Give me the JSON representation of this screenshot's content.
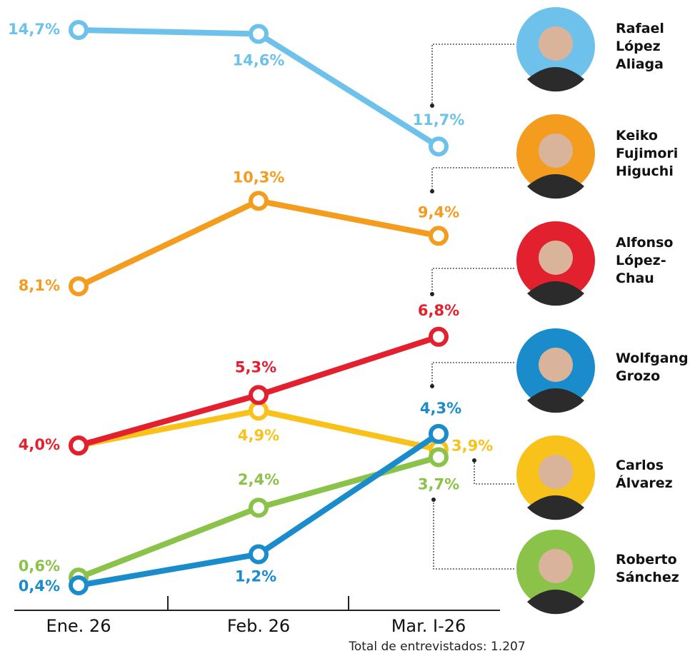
{
  "chart_data": {
    "type": "line",
    "categories": [
      "Ene. 26",
      "Feb. 26",
      "Mar. I-26"
    ],
    "series": [
      {
        "name": "Rafael López Aliaga",
        "color": "#6ec1ea",
        "values": [
          14.7,
          14.6,
          11.7
        ],
        "value_labels": [
          "14,7%",
          "14,6%",
          "11,7%"
        ]
      },
      {
        "name": "Keiko Fujimori Higuchi",
        "color": "#f39c1e",
        "values": [
          8.1,
          10.3,
          9.4
        ],
        "value_labels": [
          "8,1%",
          "10,3%",
          "9,4%"
        ]
      },
      {
        "name": "Alfonso López-Chau",
        "color": "#e3202e",
        "values": [
          4.0,
          5.3,
          6.8
        ],
        "value_labels": [
          "4,0%",
          "5,3%",
          "6,8%"
        ]
      },
      {
        "name": "Wolfgang Grozo",
        "color": "#1a8ccc",
        "values": [
          0.4,
          1.2,
          4.3
        ],
        "value_labels": [
          "0,4%",
          "1,2%",
          "4,3%"
        ]
      },
      {
        "name": "Carlos Álvarez",
        "color": "#f9c21a",
        "values": [
          4.0,
          4.9,
          3.9
        ],
        "value_labels": [
          null,
          "4,9%",
          "3,9%"
        ]
      },
      {
        "name": "Roberto Sánchez",
        "color": "#8bc34a",
        "values": [
          0.6,
          2.4,
          3.7
        ],
        "value_labels": [
          "0,6%",
          "2,4%",
          "3,7%"
        ]
      }
    ],
    "footnote": "Total de entrevistados: 1.207"
  }
}
